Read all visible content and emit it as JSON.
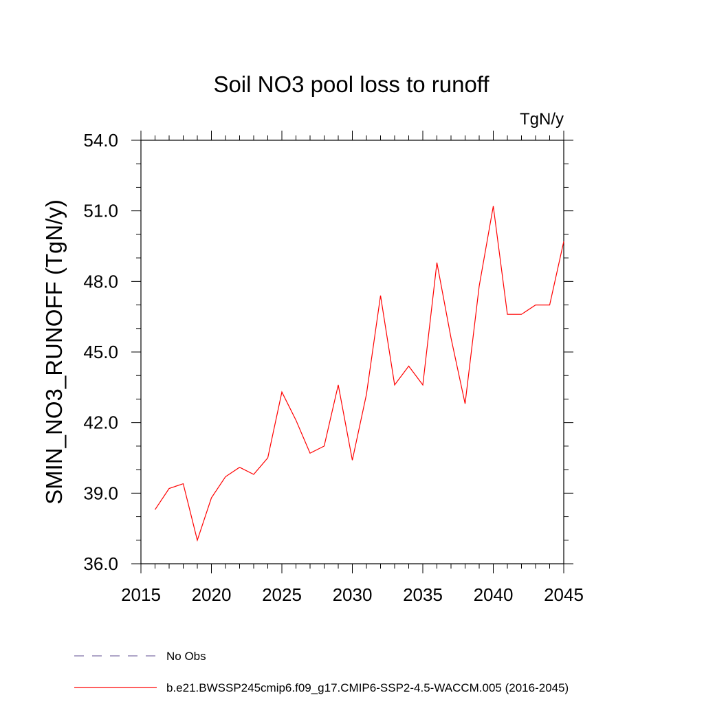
{
  "chart_data": {
    "type": "line",
    "title": "Soil NO3 pool loss to runoff",
    "units": "TgN/y",
    "ylabel": "SMIN_NO3_RUNOFF  (TgN/y)",
    "xlabel": "",
    "xlim": [
      2015,
      2045
    ],
    "ylim": [
      36.0,
      54.0
    ],
    "x_ticks": [
      "2015",
      "2020",
      "2025",
      "2030",
      "2035",
      "2040",
      "2045"
    ],
    "x_tick_values": [
      2015,
      2020,
      2025,
      2030,
      2035,
      2040,
      2045
    ],
    "y_ticks": [
      "36.0",
      "39.0",
      "42.0",
      "45.0",
      "48.0",
      "51.0",
      "54.0"
    ],
    "y_tick_values": [
      36,
      39,
      42,
      45,
      48,
      51,
      54
    ],
    "x_minor_step": 1,
    "y_minor_step": 1,
    "grid": false,
    "series": [
      {
        "name": "b.e21.BWSSP245cmip6.f09_g17.CMIP6-SSP2-4.5-WACCM.005 (2016-2045)",
        "color": "#ff0000",
        "x": [
          2016,
          2017,
          2018,
          2019,
          2020,
          2021,
          2022,
          2023,
          2024,
          2025,
          2026,
          2027,
          2028,
          2029,
          2030,
          2031,
          2032,
          2033,
          2034,
          2035,
          2036,
          2037,
          2038,
          2039,
          2040,
          2041,
          2042,
          2043,
          2044,
          2045
        ],
        "values": [
          38.3,
          39.2,
          39.4,
          37.0,
          38.8,
          39.7,
          40.1,
          39.8,
          40.5,
          43.3,
          42.1,
          40.7,
          41.0,
          43.6,
          40.4,
          43.2,
          47.4,
          43.6,
          44.4,
          43.6,
          48.8,
          45.6,
          42.8,
          47.8,
          51.2,
          46.6,
          46.6,
          47.0,
          47.0,
          49.7
        ]
      }
    ],
    "legend": [
      {
        "label": "No Obs",
        "color": "#7d6fa8",
        "style": "dashed"
      },
      {
        "label": "b.e21.BWSSP245cmip6.f09_g17.CMIP6-SSP2-4.5-WACCM.005 (2016-2045)",
        "color": "#ff0000",
        "style": "solid"
      }
    ],
    "legend_position": "bottom-left"
  }
}
